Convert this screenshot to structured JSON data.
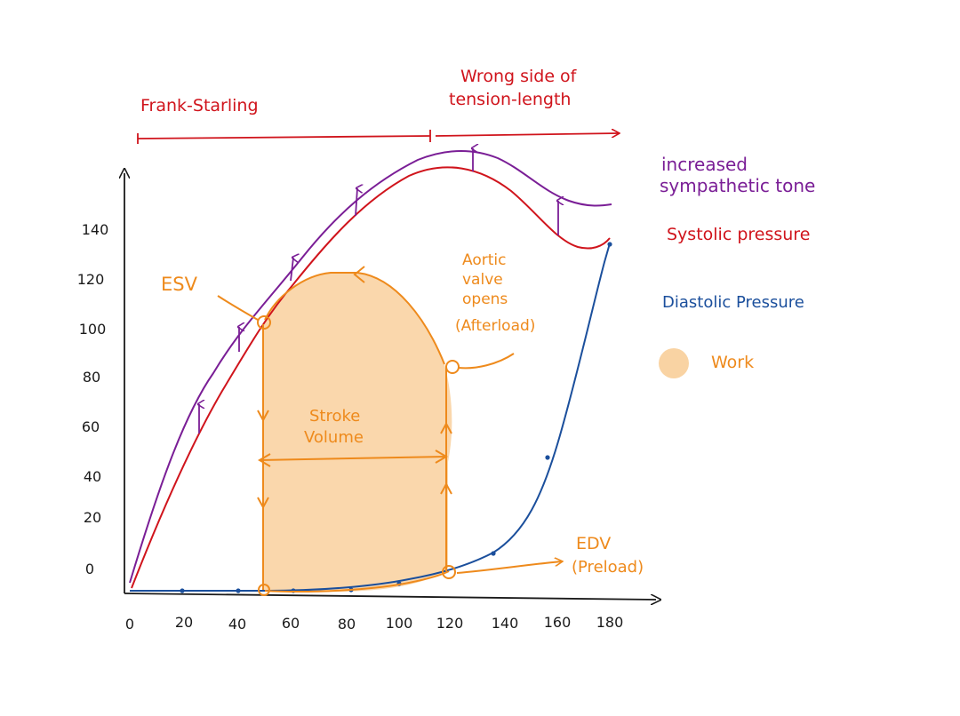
{
  "colors": {
    "systolic": "#d0141c",
    "sympathetic": "#7a1e96",
    "diastolic": "#1b4f9c",
    "loop": "#ee8a1c",
    "work_fill": "#f9d3a3",
    "axis": "#1a1a1a"
  },
  "x_ticks": [
    "0",
    "20",
    "40",
    "60",
    "80",
    "100",
    "120",
    "140",
    "160",
    "180"
  ],
  "y_ticks": [
    "0",
    "20",
    "40",
    "60",
    "80",
    "100",
    "120",
    "140"
  ],
  "top_labels": {
    "frank_starling": "Frank-Starling",
    "wrong_side_line1": "Wrong side of",
    "wrong_side_line2": "tension-length"
  },
  "annotations": {
    "esv": "ESV",
    "aortic_line1": "Aortic",
    "aortic_line2": "valve",
    "aortic_line3": "opens",
    "aortic_line4": "(Afterload)",
    "stroke_line1": "Stroke",
    "stroke_line2": "Volume",
    "edv_line1": "EDV",
    "edv_line2": "(Preload)"
  },
  "legend": {
    "sympathetic_line1": "increased",
    "sympathetic_line2": "sympathetic tone",
    "systolic": "Systolic pressure",
    "diastolic": "Diastolic Pressure",
    "work": "Work"
  }
}
